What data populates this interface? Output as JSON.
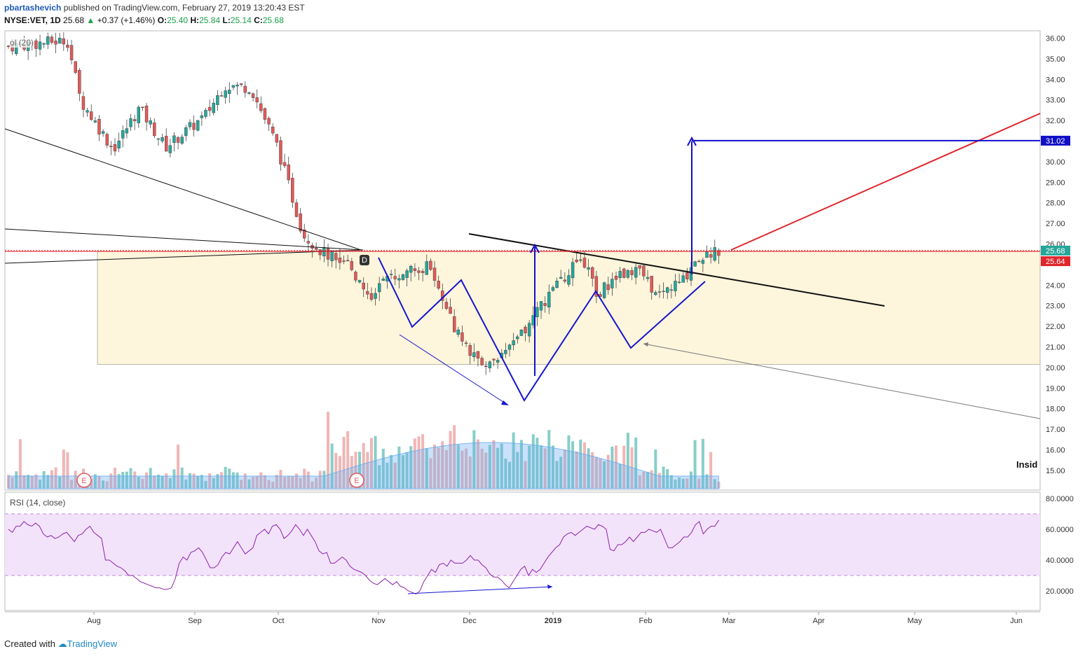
{
  "header": {
    "author": "pbartashevich",
    "published": "published on TradingView.com, February 27, 2019 13:20:43 EST",
    "symbol": "NYSE:VET, 1D",
    "last": "25.68",
    "change": "+0.37 (+1.46%)",
    "o_label": "O:",
    "o": "25.40",
    "h_label": "H:",
    "h": "25.84",
    "l_label": "L:",
    "l": "25.14",
    "c_label": "C:",
    "c": "25.68"
  },
  "indicators": {
    "volume": "ol (20)",
    "rsi": "RSI (14, close)",
    "insid": "Insid"
  },
  "footer": {
    "created": "Created with",
    "brand": "TradingView"
  },
  "colors": {
    "up": "#26a69a",
    "down": "#e05a5a",
    "pattern": "#1515d0",
    "target": "#1010c8",
    "resistance": "#e0262c",
    "zone": "#fdf5dc",
    "rsi_band": "#f2e3fb",
    "rsi_line": "#8e24aa"
  },
  "chart_data": {
    "type": "candlestick",
    "price_axis": {
      "ticks": [
        "36.00",
        "35.00",
        "34.00",
        "33.00",
        "32.00",
        "31.00",
        "30.00",
        "29.00",
        "28.00",
        "27.00",
        "26.00",
        "24.00",
        "23.00",
        "22.00",
        "21.00",
        "20.00",
        "19.00",
        "18.00",
        "17.00",
        "16.00",
        "15.00"
      ],
      "ylim": [
        14.2,
        36.5
      ]
    },
    "rsi_axis": {
      "ticks": [
        "80.0000",
        "60.0000",
        "40.0000",
        "20.0000"
      ],
      "ylim": [
        8,
        84
      ],
      "bands": [
        30,
        70
      ]
    },
    "x_axis": {
      "ticks": [
        "Aug",
        "Sep",
        "Oct",
        "Nov",
        "Dec",
        "2019",
        "Feb",
        "Mar",
        "Apr",
        "May",
        "Jun"
      ]
    },
    "price_labels": {
      "last": "25.68",
      "resistance": "25.64",
      "target": "31.02"
    },
    "markers": {
      "earnings": [
        "E",
        "E"
      ],
      "dividend": "D"
    },
    "annotations": {
      "target_level": 31.02,
      "resistance_level": 25.64,
      "zone": [
        20.15,
        25.64
      ]
    },
    "rsi": [
      60,
      58,
      62,
      62,
      65,
      63,
      62,
      64,
      62,
      57,
      55,
      56,
      54,
      55,
      57,
      58,
      55,
      52,
      56,
      57,
      60,
      62,
      58,
      56,
      54,
      40,
      40,
      38,
      36,
      35,
      33,
      30,
      30,
      28,
      26,
      25,
      24,
      23,
      22,
      22,
      21,
      21,
      22,
      28,
      38,
      42,
      40,
      45,
      46,
      48,
      45,
      40,
      35,
      35,
      37,
      42,
      45,
      44,
      48,
      52,
      48,
      44,
      46,
      48,
      56,
      58,
      60,
      57,
      62,
      63,
      60,
      54,
      56,
      59,
      63,
      60,
      56,
      60,
      56,
      52,
      46,
      44,
      45,
      38,
      38,
      40,
      42,
      40,
      36,
      34,
      33,
      32,
      30,
      27,
      25,
      24,
      26,
      28,
      26,
      24,
      26,
      23,
      22,
      20,
      19,
      18,
      20,
      26,
      30,
      34,
      32,
      37,
      38,
      36,
      40,
      38,
      38,
      38,
      40,
      43,
      40,
      40,
      37,
      35,
      31,
      29,
      29,
      27,
      24,
      22,
      26,
      30,
      34,
      36,
      30,
      34,
      32,
      34,
      38,
      42,
      45,
      48,
      50,
      55,
      57,
      58,
      56,
      58,
      60,
      62,
      61,
      60,
      63,
      62,
      60,
      47,
      46,
      50,
      50,
      52,
      55,
      52,
      55,
      58,
      58,
      60,
      59,
      58,
      60,
      54,
      48,
      48,
      50,
      52,
      55,
      55,
      58,
      63,
      65,
      57,
      60,
      62,
      62,
      66
    ]
  }
}
